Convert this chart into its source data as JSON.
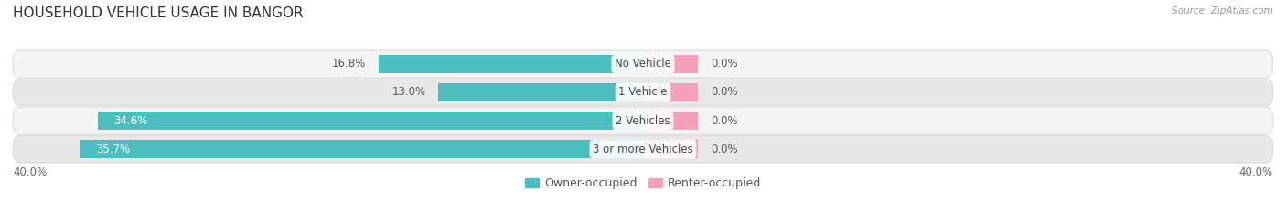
{
  "title": "HOUSEHOLD VEHICLE USAGE IN BANGOR",
  "source": "Source: ZipAtlas.com",
  "categories": [
    "No Vehicle",
    "1 Vehicle",
    "2 Vehicles",
    "3 or more Vehicles"
  ],
  "owner_values": [
    16.8,
    13.0,
    34.6,
    35.7
  ],
  "renter_values": [
    0.0,
    0.0,
    0.0,
    0.0
  ],
  "renter_display": [
    3.5,
    3.5,
    3.5,
    3.5
  ],
  "owner_color": "#4bbfbf",
  "renter_color": "#f4a0b8",
  "background_color": "#ffffff",
  "row_bg_light": "#f5f5f5",
  "row_bg_dark": "#e8e8e8",
  "xlim": [
    -40,
    40
  ],
  "title_fontsize": 11,
  "label_fontsize": 8.5,
  "legend_fontsize": 9,
  "bar_height": 0.62
}
